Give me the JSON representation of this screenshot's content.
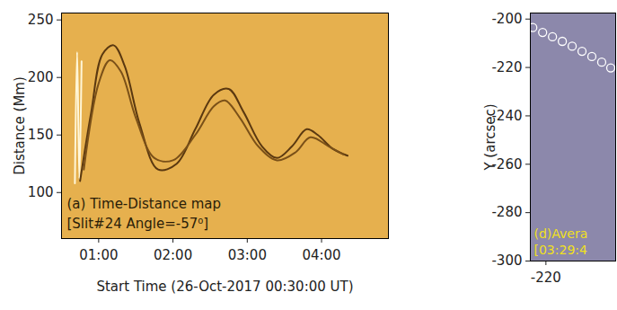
{
  "chart_data": [
    {
      "type": "line",
      "annotations": [
        "(a) Time-Distance map",
        "[Slit#24 Angle=-57⁰]"
      ],
      "x_label": "Start Time (26-Oct-2017 00:30:00 UT)",
      "y_label": "Distance (Mm)",
      "color": "#e6b04e",
      "xlim": [
        0.5,
        4.9
      ],
      "xticks": [
        {
          "value": 1,
          "label": "01:00"
        },
        {
          "value": 2,
          "label": "02:00"
        },
        {
          "value": 3,
          "label": "03:00"
        },
        {
          "value": 4,
          "label": "04:00"
        }
      ],
      "ylim": [
        60,
        256
      ],
      "yticks": [
        100,
        150,
        200,
        250
      ],
      "series": [
        {
          "color": "#fff6d8",
          "x": [
            0.68,
            0.71,
            0.74,
            0.77
          ],
          "values": [
            108,
            222,
            112,
            214
          ]
        },
        {
          "color": "#5a3810",
          "x": [
            0.75,
            0.9,
            1.05,
            1.2,
            1.35,
            1.55,
            1.8,
            2.05,
            2.3,
            2.55,
            2.75,
            2.95,
            3.2,
            3.4,
            3.6,
            3.8,
            3.95,
            4.15,
            4.35
          ],
          "values": [
            110,
            170,
            220,
            228,
            210,
            160,
            120,
            125,
            155,
            185,
            190,
            170,
            140,
            130,
            140,
            155,
            150,
            138,
            132
          ]
        },
        {
          "color": "#7a5018",
          "x": [
            0.8,
            1.0,
            1.15,
            1.3,
            1.5,
            1.75,
            2.0,
            2.3,
            2.55,
            2.7,
            2.9,
            3.15,
            3.4,
            3.65,
            3.85,
            4.1,
            4.3
          ],
          "values": [
            120,
            195,
            215,
            205,
            165,
            130,
            128,
            150,
            175,
            180,
            165,
            140,
            128,
            135,
            148,
            140,
            133
          ]
        }
      ]
    },
    {
      "type": "scatter",
      "annotations": [
        "(d)Avera",
        "[03:29:4"
      ],
      "y_label": "Y (arcsec)",
      "color": "#8c88ab",
      "xlim": [
        -223.8,
        -203
      ],
      "xticks": [
        -220
      ],
      "ylim": [
        -300,
        -197.5
      ],
      "yticks": [
        -200,
        -220,
        -240,
        -260,
        -280,
        -300
      ],
      "series": [
        {
          "color": "#ffffff",
          "marker": "circle",
          "x": [
            -223.2,
            -220.8,
            -218.4,
            -216,
            -213.6,
            -211.2,
            -208.8,
            -206.4,
            -204.2
          ],
          "values": [
            -203.5,
            -205.5,
            -207.3,
            -209.2,
            -211.2,
            -213.3,
            -215.5,
            -217.8,
            -220.2
          ]
        }
      ]
    }
  ]
}
